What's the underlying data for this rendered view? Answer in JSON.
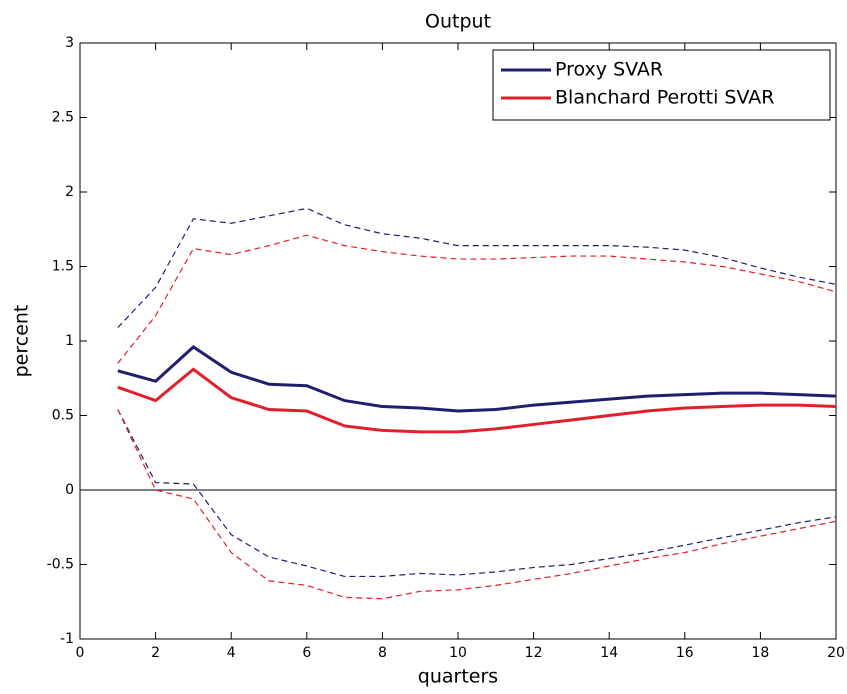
{
  "chart_data": {
    "type": "line",
    "title": "Output",
    "x_label": "quarters",
    "y_label": "percent",
    "x": [
      1,
      2,
      3,
      4,
      5,
      6,
      7,
      8,
      9,
      10,
      11,
      12,
      13,
      14,
      15,
      16,
      17,
      18,
      19,
      20
    ],
    "series": [
      {
        "name": "Proxy SVAR",
        "color": "#1f1f6e",
        "values": [
          0.8,
          0.73,
          0.96,
          0.79,
          0.71,
          0.7,
          0.6,
          0.56,
          0.55,
          0.53,
          0.54,
          0.57,
          0.59,
          0.61,
          0.63,
          0.64,
          0.65,
          0.65,
          0.64,
          0.63
        ],
        "upper": [
          1.09,
          1.36,
          1.82,
          1.79,
          1.84,
          1.89,
          1.78,
          1.72,
          1.69,
          1.64,
          1.64,
          1.64,
          1.64,
          1.64,
          1.63,
          1.61,
          1.56,
          1.49,
          1.43,
          1.38
        ],
        "lower": [
          0.54,
          0.05,
          0.04,
          -0.3,
          -0.45,
          -0.51,
          -0.58,
          -0.58,
          -0.56,
          -0.57,
          -0.55,
          -0.52,
          -0.5,
          -0.46,
          -0.42,
          -0.37,
          -0.32,
          -0.27,
          -0.22,
          -0.18
        ]
      },
      {
        "name": "Blanchard Perotti SVAR",
        "color": "#e0202a",
        "values": [
          0.69,
          0.6,
          0.81,
          0.62,
          0.54,
          0.53,
          0.43,
          0.4,
          0.39,
          0.39,
          0.41,
          0.44,
          0.47,
          0.5,
          0.53,
          0.55,
          0.56,
          0.57,
          0.57,
          0.56
        ],
        "upper": [
          0.85,
          1.17,
          1.62,
          1.58,
          1.64,
          1.71,
          1.64,
          1.6,
          1.57,
          1.55,
          1.55,
          1.56,
          1.57,
          1.57,
          1.55,
          1.53,
          1.5,
          1.45,
          1.4,
          1.33
        ],
        "lower": [
          0.54,
          0.0,
          -0.06,
          -0.42,
          -0.61,
          -0.64,
          -0.72,
          -0.73,
          -0.68,
          -0.67,
          -0.64,
          -0.6,
          -0.56,
          -0.51,
          -0.46,
          -0.42,
          -0.36,
          -0.31,
          -0.26,
          -0.21
        ]
      }
    ],
    "xlim": [
      0,
      20
    ],
    "xticks": [
      0,
      2,
      4,
      6,
      8,
      10,
      12,
      14,
      16,
      18,
      20
    ],
    "ylim": [
      -1,
      3
    ],
    "yticks": [
      -1,
      -0.5,
      0,
      0.5,
      1,
      1.5,
      2,
      2.5,
      3
    ],
    "zero_line": true,
    "legend": "upper right"
  }
}
